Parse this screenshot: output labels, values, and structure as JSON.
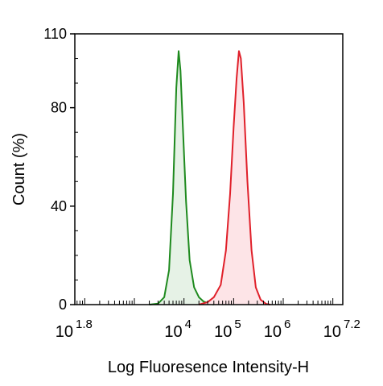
{
  "chart_data": {
    "type": "area",
    "xlabel": "Log Fluoresence Intensity-H",
    "ylabel": "Count  (%)",
    "x_scale": "log10",
    "xlim": [
      63.0957,
      15848932
    ],
    "ylim": [
      0,
      110
    ],
    "x_ticks": [
      {
        "value": 63.0957,
        "base": "10",
        "exp": "1.8"
      },
      {
        "value": 10000,
        "base": "10",
        "exp": "4"
      },
      {
        "value": 100000,
        "base": "10",
        "exp": "5"
      },
      {
        "value": 1000000,
        "base": "10",
        "exp": "6"
      },
      {
        "value": 15848932,
        "base": "10",
        "exp": "7.2"
      }
    ],
    "y_ticks": [
      "0",
      "40",
      "80",
      "110"
    ],
    "y_tick_values": [
      0,
      40,
      80,
      110
    ],
    "legend": "none",
    "grid": false,
    "series": [
      {
        "color": "#1e8a1e",
        "fill": "#e6f2e6",
        "points": [
          [
            2000,
            0
          ],
          [
            3000,
            0.4
          ],
          [
            4000,
            3
          ],
          [
            5000,
            14
          ],
          [
            6000,
            45
          ],
          [
            7000,
            88
          ],
          [
            7800,
            103
          ],
          [
            8500,
            95
          ],
          [
            9500,
            72
          ],
          [
            11000,
            42
          ],
          [
            13000,
            18
          ],
          [
            16000,
            7
          ],
          [
            20000,
            3
          ],
          [
            25000,
            1.2
          ],
          [
            32000,
            0.5
          ],
          [
            40000,
            0
          ]
        ]
      },
      {
        "color": "#e0202a",
        "fill": "#fde4e7",
        "points": [
          [
            20000,
            0
          ],
          [
            30000,
            1
          ],
          [
            40000,
            3
          ],
          [
            55000,
            8
          ],
          [
            70000,
            22
          ],
          [
            85000,
            45
          ],
          [
            100000,
            72
          ],
          [
            115000,
            92
          ],
          [
            128000,
            103
          ],
          [
            140000,
            100
          ],
          [
            160000,
            82
          ],
          [
            190000,
            50
          ],
          [
            230000,
            22
          ],
          [
            280000,
            7
          ],
          [
            350000,
            2
          ],
          [
            450000,
            0.3
          ],
          [
            550000,
            0
          ]
        ]
      }
    ]
  }
}
